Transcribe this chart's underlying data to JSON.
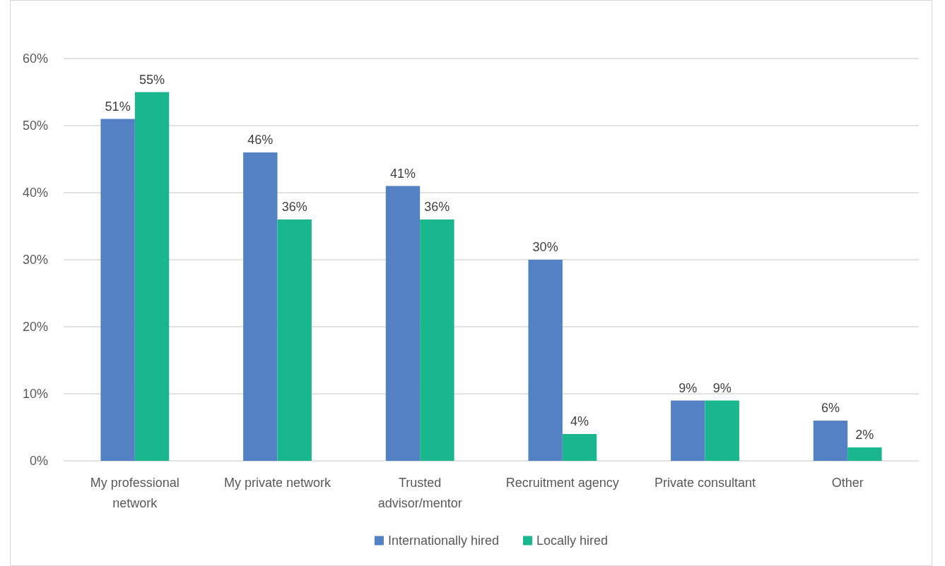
{
  "chart_data": {
    "type": "bar",
    "categories": [
      "My professional network",
      "My private network",
      "Trusted advisor/mentor",
      "Recruitment agency",
      "Private consultant",
      "Other"
    ],
    "series": [
      {
        "name": "Internationally hired",
        "color": "#5381c4",
        "values": [
          51,
          46,
          41,
          30,
          9,
          6
        ],
        "value_labels": [
          "51%",
          "46%",
          "41%",
          "30%",
          "9%",
          "6%"
        ]
      },
      {
        "name": "Locally hired",
        "color": "#1ab78e",
        "values": [
          55,
          36,
          36,
          4,
          9,
          2
        ],
        "value_labels": [
          "55%",
          "36%",
          "36%",
          "4%",
          "9%",
          "2%"
        ]
      }
    ],
    "ylim": [
      0,
      60
    ],
    "yticks": [
      {
        "value": 0,
        "label": "0%"
      },
      {
        "value": 10,
        "label": "10%"
      },
      {
        "value": 20,
        "label": "20%"
      },
      {
        "value": 30,
        "label": "30%"
      },
      {
        "value": 40,
        "label": "40%"
      },
      {
        "value": 50,
        "label": "50%"
      },
      {
        "value": 60,
        "label": "60%"
      }
    ],
    "grid": "y",
    "legend": "bottom"
  }
}
